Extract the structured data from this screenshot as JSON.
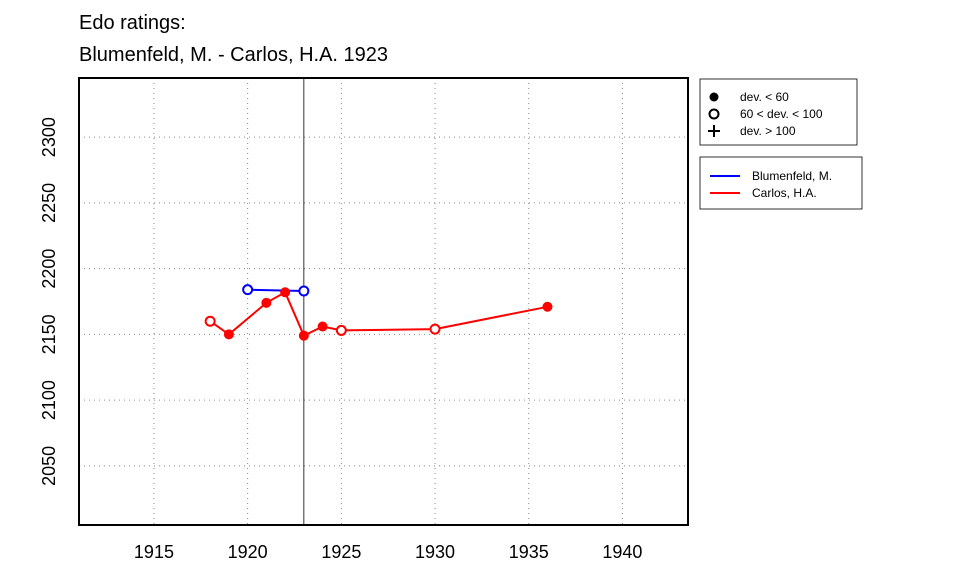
{
  "chart_data": {
    "type": "line",
    "title": "Edo ratings:",
    "subtitle": "Blumenfeld, M. - Carlos, H.A. 1923",
    "xlabel": "",
    "ylabel": "",
    "xlim": [
      1911,
      1943.5
    ],
    "ylim": [
      2005,
      2345
    ],
    "x_ticks": [
      1915,
      1920,
      1925,
      1930,
      1935,
      1940
    ],
    "y_ticks": [
      2050,
      2100,
      2150,
      2200,
      2250,
      2300
    ],
    "grid": true,
    "grid_style": "dotted",
    "reference_line_x": 1923,
    "marker_legend": [
      {
        "marker": "filled-circle",
        "label": "dev. < 60"
      },
      {
        "marker": "open-circle",
        "label": "60 < dev. < 100"
      },
      {
        "marker": "plus",
        "label": "dev. > 100"
      }
    ],
    "legend_placement": "right-top",
    "series": [
      {
        "name": "Blumenfeld, M.",
        "color": "#0000ff",
        "points": [
          {
            "x": 1920,
            "y": 2184,
            "marker": "open-circle"
          },
          {
            "x": 1923,
            "y": 2183,
            "marker": "open-circle"
          }
        ]
      },
      {
        "name": "Carlos, H.A.",
        "color": "#ff0000",
        "points": [
          {
            "x": 1918,
            "y": 2160,
            "marker": "open-circle"
          },
          {
            "x": 1919,
            "y": 2150,
            "marker": "filled-circle"
          },
          {
            "x": 1921,
            "y": 2174,
            "marker": "filled-circle"
          },
          {
            "x": 1922,
            "y": 2182,
            "marker": "filled-circle"
          },
          {
            "x": 1923,
            "y": 2149,
            "marker": "filled-circle"
          },
          {
            "x": 1924,
            "y": 2156,
            "marker": "filled-circle"
          },
          {
            "x": 1925,
            "y": 2153,
            "marker": "open-circle"
          },
          {
            "x": 1930,
            "y": 2154,
            "marker": "open-circle"
          },
          {
            "x": 1936,
            "y": 2171,
            "marker": "filled-circle"
          }
        ]
      }
    ]
  }
}
